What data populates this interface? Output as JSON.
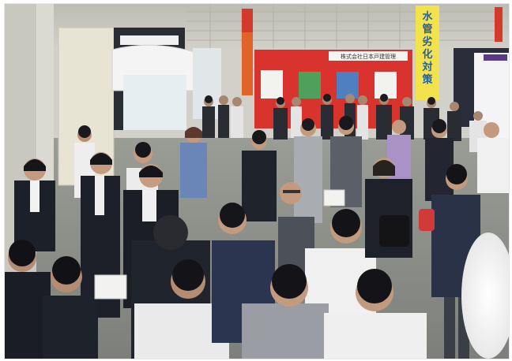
{
  "scene": {
    "description_type": "photograph",
    "banner_right": [
      "水",
      "管",
      "劣",
      "化",
      "対",
      "策"
    ],
    "header_sign": "株式会社日本戸建管理"
  },
  "palette": {
    "ceiling": "#c9c8c0",
    "wall": "#dcdbd3",
    "floor": "#8c8f8a",
    "booth_red": "#d8332c",
    "banner_yellow": "#f2e24c",
    "suit_dark": "#1e222b",
    "shirt_white": "#f2f2f2",
    "skin": "#c79a7e"
  }
}
